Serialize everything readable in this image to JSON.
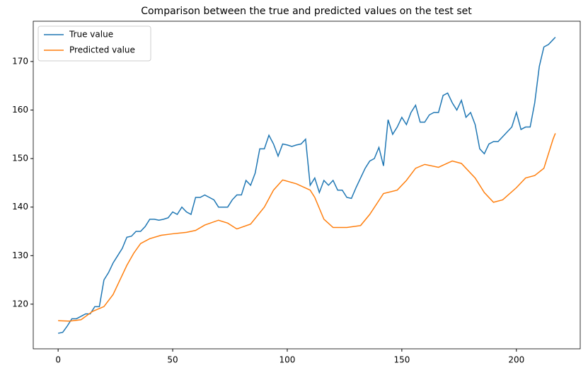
{
  "chart_data": {
    "type": "line",
    "title": "Comparison between the true and predicted values on the test set",
    "xlim": [
      -10.85,
      227.85
    ],
    "ylim": [
      110.8,
      178.3
    ],
    "xticks": [
      0,
      50,
      100,
      150,
      200
    ],
    "yticks": [
      120,
      130,
      140,
      150,
      160,
      170
    ],
    "grid": false,
    "legend": "upper left",
    "series": [
      {
        "name": "True value",
        "color": "#1f77b4",
        "x": [
          0,
          2,
          4,
          6,
          8,
          10,
          12,
          14,
          16,
          18,
          20,
          22,
          24,
          26,
          28,
          30,
          32,
          34,
          36,
          38,
          40,
          42,
          44,
          46,
          48,
          50,
          52,
          54,
          56,
          58,
          60,
          62,
          64,
          66,
          68,
          70,
          72,
          74,
          76,
          78,
          80,
          82,
          84,
          86,
          88,
          90,
          92,
          94,
          96,
          98,
          100,
          102,
          104,
          106,
          108,
          110,
          112,
          114,
          116,
          118,
          120,
          122,
          124,
          126,
          128,
          130,
          132,
          134,
          136,
          138,
          140,
          142,
          144,
          146,
          148,
          150,
          152,
          154,
          156,
          158,
          160,
          162,
          164,
          166,
          168,
          170,
          172,
          174,
          176,
          178,
          180,
          182,
          184,
          186,
          188,
          190,
          192,
          194,
          196,
          198,
          200,
          202,
          204,
          206,
          208,
          210,
          212,
          214,
          216,
          217
        ],
        "values": [
          114,
          114.2,
          115.5,
          117,
          117,
          117.5,
          118,
          118,
          119.5,
          119.5,
          125,
          126.5,
          128.5,
          130,
          131.5,
          133.8,
          134,
          135,
          135,
          136,
          137.5,
          137.5,
          137.3,
          137.5,
          137.8,
          139,
          138.5,
          140,
          139,
          138.5,
          142,
          142,
          142.5,
          142,
          141.5,
          140,
          140,
          140,
          141.5,
          142.5,
          142.5,
          145.5,
          144.5,
          147,
          152,
          152,
          154.8,
          153,
          150.5,
          153,
          152.8,
          152.5,
          152.8,
          153,
          154,
          144.5,
          146,
          143,
          145.5,
          144.5,
          145.5,
          143.5,
          143.5,
          142,
          141.8,
          144,
          146,
          148,
          149.5,
          150,
          152.3,
          148.5,
          158,
          155,
          156.5,
          158.5,
          157,
          159.5,
          161,
          157.5,
          157.5,
          159,
          159.5,
          159.5,
          163,
          163.5,
          161.5,
          160,
          162,
          158.5,
          159.5,
          157,
          152,
          151,
          153,
          153.5,
          153.5,
          154.5,
          155.5,
          156.5,
          159.5,
          156,
          156.5,
          156.5,
          161.5,
          169,
          173,
          173.5,
          174.5,
          175
        ]
      },
      {
        "name": "Predicted value",
        "color": "#ff7f0e",
        "x": [
          0,
          5,
          10,
          15,
          20,
          24,
          27,
          30,
          33,
          36,
          40,
          45,
          50,
          56,
          60,
          64,
          70,
          74,
          78,
          84,
          90,
          94,
          98,
          104,
          110,
          112,
          116,
          120,
          126,
          132,
          136,
          142,
          148,
          152,
          156,
          160,
          166,
          172,
          176,
          182,
          186,
          190,
          194,
          200,
          204,
          208,
          212,
          216,
          217
        ],
        "values": [
          116.6,
          116.5,
          116.8,
          118.5,
          119.5,
          122,
          125,
          128,
          130.5,
          132.5,
          133.5,
          134.2,
          134.5,
          134.8,
          135.2,
          136.3,
          137.3,
          136.7,
          135.5,
          136.5,
          140,
          143.5,
          145.6,
          144.8,
          143.5,
          142,
          137.5,
          135.8,
          135.8,
          136.2,
          138.5,
          142.8,
          143.5,
          145.5,
          148,
          148.8,
          148.2,
          149.5,
          149,
          146,
          143,
          141,
          141.5,
          144,
          146,
          146.5,
          148,
          154,
          155.2
        ]
      }
    ]
  }
}
